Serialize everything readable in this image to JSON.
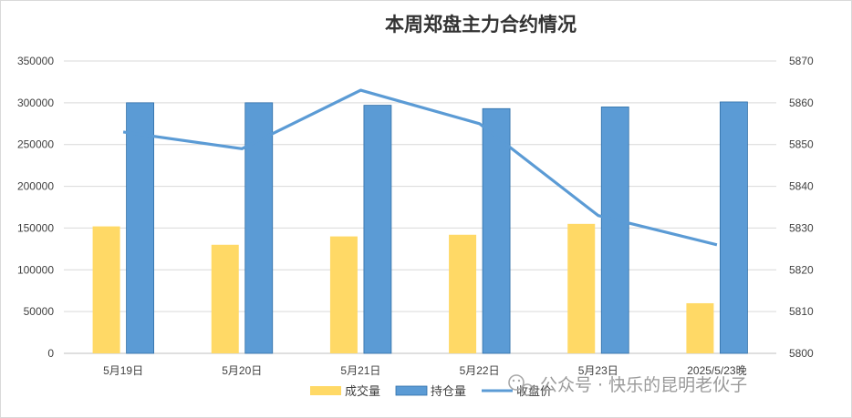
{
  "chart_data": {
    "type": "bar",
    "title": "本周郑盘主力合约情况",
    "categories": [
      "5月19日",
      "5月20日",
      "5月21日",
      "5月22日",
      "5月23日",
      "2025/5/23晚"
    ],
    "series": [
      {
        "name": "成交量",
        "kind": "bar",
        "axis": "left",
        "color": "#FFD966",
        "values": [
          152000,
          130000,
          140000,
          142000,
          155000,
          60000
        ]
      },
      {
        "name": "持仓量",
        "kind": "bar",
        "axis": "left",
        "color": "#5B9BD5",
        "values": [
          300000,
          300000,
          297000,
          293000,
          295000,
          301000
        ]
      },
      {
        "name": "收盘价",
        "kind": "line",
        "axis": "right",
        "color": "#5B9BD5",
        "values": [
          5853,
          5849,
          5863,
          5855,
          5833,
          5826
        ]
      }
    ],
    "y_left": {
      "min": 0,
      "max": 350000,
      "ticks": [
        "0",
        "50000",
        "100000",
        "150000",
        "200000",
        "250000",
        "300000",
        "350000"
      ]
    },
    "y_right": {
      "min": 5800,
      "max": 5870,
      "ticks": [
        "5800",
        "5810",
        "5820",
        "5830",
        "5840",
        "5850",
        "5860",
        "5870"
      ]
    },
    "legend_position": "bottom",
    "grid": true
  },
  "watermark": "公众号 · 快乐的昆明老伙子",
  "watermark_icon": "wechat-icon"
}
